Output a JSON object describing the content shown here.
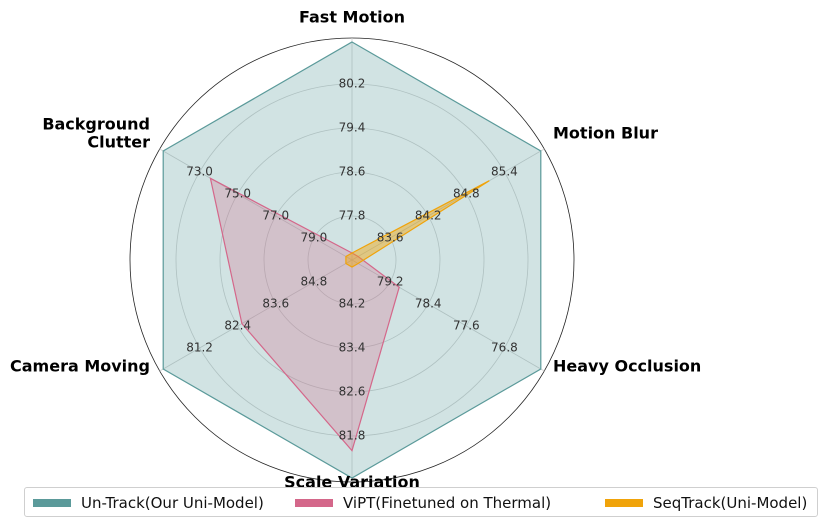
{
  "chart_data": {
    "type": "radar",
    "axes": [
      "Fast Motion",
      "Motion Blur",
      "Heavy Occlusion",
      "Scale Variation",
      "Camera Moving",
      "Background Clutter"
    ],
    "axis_label_lines": [
      [
        "Fast Motion"
      ],
      [
        "Motion Blur"
      ],
      [
        "Heavy Occlusion"
      ],
      [
        "Scale Variation"
      ],
      [
        "Camera Moving"
      ],
      [
        "Background",
        "Clutter"
      ]
    ],
    "axis_ranges": [
      [
        80.2,
        81.0
      ],
      [
        83.6,
        85.8
      ],
      [
        76.8,
        80.0
      ],
      [
        81.8,
        85.0
      ],
      [
        81.2,
        86.0
      ],
      [
        73.0,
        81.0
      ]
    ],
    "ticks": [
      [
        "80.2",
        "79.4",
        "78.6",
        "77.8"
      ],
      [
        "85.4",
        "84.8",
        "84.2",
        "83.6"
      ],
      [
        "76.8",
        "77.6",
        "78.4",
        "79.2"
      ],
      [
        "81.8",
        "82.6",
        "83.4",
        "84.2"
      ],
      [
        "81.2",
        "82.4",
        "83.6",
        "84.8"
      ],
      [
        "73.0",
        "75.0",
        "77.0",
        "79.0"
      ]
    ],
    "series": [
      {
        "name": "Un-Track(Our Uni-Model)",
        "color": "#5b9a9a",
        "fill": "rgba(91,154,154,0.28)",
        "values": [
          81.0,
          85.8,
          80.0,
          85.0,
          86.0,
          81.0
        ]
      },
      {
        "name": "ViPT(Finetuned on Thermal)",
        "color": "#d4678a",
        "fill": "rgba(212,103,138,0.28)",
        "values": [
          80.2,
          83.6,
          77.6,
          84.6,
          84.0,
          79.0
        ]
      },
      {
        "name": "SeqTrack(Uni-Model)",
        "color": "#f0a30a",
        "fill": "rgba(240,163,10,0.45)",
        "values": [
          80.2,
          85.2,
          76.8,
          81.8,
          81.2,
          73.0
        ]
      }
    ],
    "grid": true,
    "legend_position": "bottom"
  }
}
